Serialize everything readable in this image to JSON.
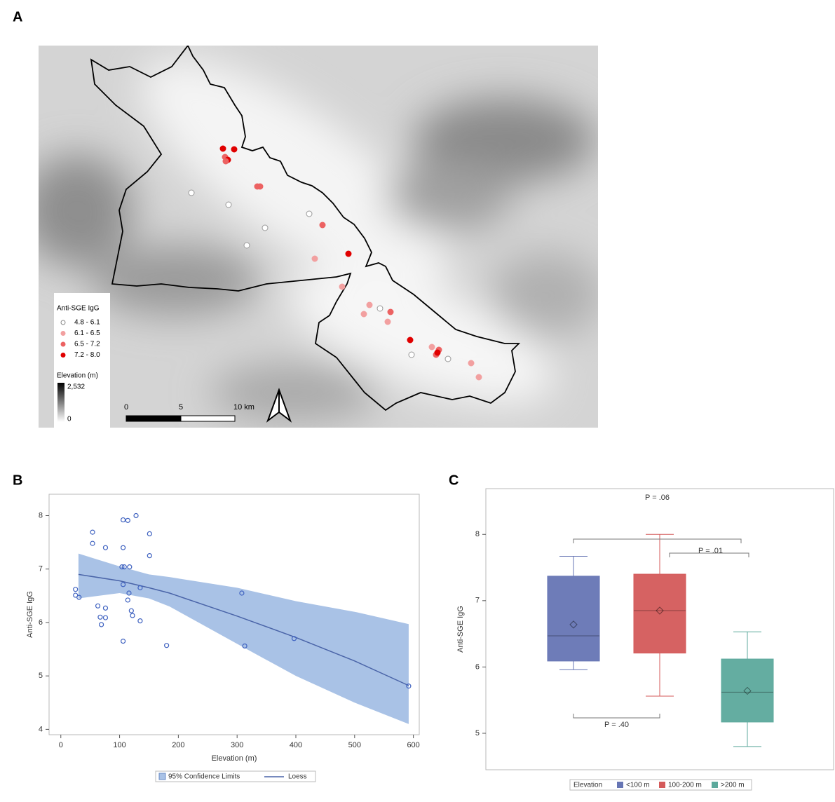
{
  "map": {
    "panel_label": "A",
    "legend_title": "Anti-SGE IgG",
    "classes": [
      {
        "label": "4.8 - 6.1",
        "color": "#ffffff"
      },
      {
        "label": "6.1 - 6.5",
        "color": "#f2a0a0"
      },
      {
        "label": "6.5 - 7.2",
        "color": "#ec6262"
      },
      {
        "label": "7.2 - 8.0",
        "color": "#e00000"
      }
    ],
    "elevation_title": "Elevation (m)",
    "elevation_max": "2,532",
    "elevation_min": "0",
    "scale_labels": [
      "0",
      "5",
      "10 km"
    ]
  },
  "chart_data": [
    {
      "type": "scatter",
      "panel_label": "B",
      "x_label": "Elevation (m)",
      "y_label": "Anti-SGE IgG",
      "xlim": [
        -20,
        610
      ],
      "ylim": [
        3.9,
        8.4
      ],
      "xticks": [
        0,
        100,
        200,
        300,
        400,
        500,
        600
      ],
      "yticks": [
        4,
        5,
        6,
        7,
        8
      ],
      "points": {
        "color": "#3f62c0",
        "x": [
          25,
          25,
          31,
          54,
          54,
          76,
          63,
          67,
          69,
          76,
          76,
          106,
          114,
          128,
          106,
          104,
          108,
          117,
          106,
          114,
          116,
          135,
          120,
          122,
          135,
          151,
          151,
          106,
          180,
          308,
          313,
          397,
          592
        ],
        "y": [
          6.62,
          6.51,
          6.47,
          7.69,
          7.48,
          7.4,
          6.31,
          6.1,
          5.96,
          6.27,
          6.09,
          7.92,
          7.91,
          8.0,
          7.4,
          7.04,
          7.04,
          7.04,
          6.71,
          6.42,
          6.55,
          6.65,
          6.22,
          6.13,
          6.03,
          7.66,
          7.25,
          5.65,
          5.57,
          6.55,
          5.56,
          5.7,
          4.81
        ]
      },
      "loess": {
        "name": "Loess",
        "color": "#4a64a8",
        "x": [
          30,
          100,
          150,
          185,
          300,
          400,
          500,
          592
        ],
        "y": [
          6.9,
          6.78,
          6.65,
          6.55,
          6.12,
          5.72,
          5.28,
          4.82
        ]
      },
      "confidence": {
        "name": "95% Confidence Limits",
        "color": "#a9c2e6",
        "x": [
          30,
          100,
          150,
          185,
          300,
          400,
          500,
          592
        ],
        "lower": [
          6.45,
          6.55,
          6.45,
          6.3,
          5.6,
          5.0,
          4.5,
          4.1
        ],
        "upper": [
          7.29,
          7.05,
          6.9,
          6.85,
          6.65,
          6.4,
          6.2,
          5.97
        ]
      }
    },
    {
      "type": "box",
      "panel_label": "C",
      "y_label": "Anti-SGE IgG",
      "legend_title": "Elevation",
      "ylim": [
        4.45,
        8.69
      ],
      "yticks": [
        5,
        6,
        7,
        8
      ],
      "series": [
        {
          "name": "<100 m",
          "color": "#6675b4",
          "min": 5.96,
          "q1": 6.09,
          "median": 6.47,
          "q3": 7.37,
          "max": 7.67,
          "mean": 6.64
        },
        {
          "name": "100-200 m",
          "color": "#d45a5a",
          "min": 5.56,
          "q1": 6.21,
          "median": 6.85,
          "q3": 7.4,
          "max": 8.0,
          "mean": 6.85
        },
        {
          "name": ">200 m",
          "color": "#5ca99c",
          "min": 4.8,
          "q1": 5.17,
          "median": 5.62,
          "q3": 6.12,
          "max": 6.53,
          "mean": 5.64
        }
      ],
      "annotations": [
        "P = .06",
        "P = .01",
        "P = .40"
      ]
    }
  ]
}
